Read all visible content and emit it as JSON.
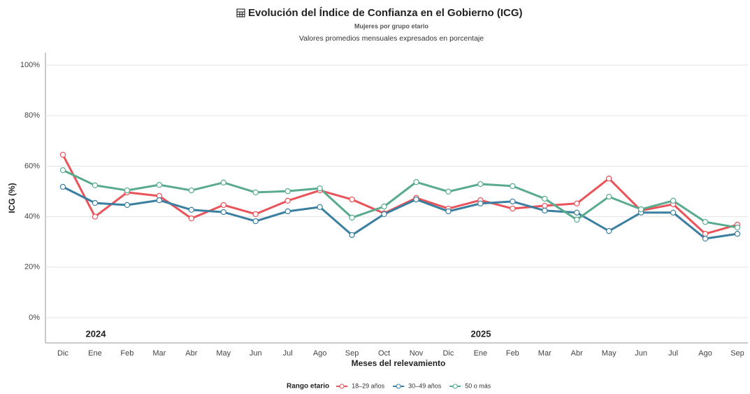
{
  "chart_data": {
    "type": "line",
    "title": "Evolución del Índice de Confianza en el Gobierno (ICG)",
    "subtitle": "Mujeres por grupo etario",
    "caption": "Valores promedios mensuales expresados en porcentaje",
    "x_label": "Meses del relevamiento",
    "y_label": "ICG (%)",
    "annotations": [
      "2024",
      "2025"
    ],
    "legend_title": "Rango etario",
    "legend": "bottom",
    "grid": true,
    "categories": [
      "Dic",
      "Ene",
      "Feb",
      "Mar",
      "Abr",
      "May",
      "Jun",
      "Jul",
      "Ago",
      "Sep",
      "Oct",
      "Nov",
      "Dic",
      "Ene",
      "Feb",
      "Mar",
      "Abr",
      "May",
      "Jun",
      "Jul",
      "Ago",
      "Sep"
    ],
    "ylim": [
      -10,
      105
    ],
    "yticks": [
      {
        "value": 0,
        "label": "0%"
      },
      {
        "value": 20,
        "label": "20%"
      },
      {
        "value": 40,
        "label": "40%"
      },
      {
        "value": 60,
        "label": "60%"
      },
      {
        "value": 80,
        "label": "80%"
      },
      {
        "value": 100,
        "label": "100%"
      }
    ],
    "series": [
      {
        "name": "18–29 años",
        "color": "#e8545a",
        "values": [
          64.5,
          40,
          49.6,
          48.2,
          39.3,
          44.6,
          41,
          46.3,
          50.4,
          46.8,
          41.3,
          47.4,
          43.2,
          46.5,
          43.2,
          44.3,
          45.2,
          55.1,
          42.4,
          44.9,
          33.2,
          36.8
        ]
      },
      {
        "name": "30–49 años",
        "color": "#3a7fa0",
        "values": [
          51.8,
          45.4,
          44.6,
          46.5,
          42.7,
          41.8,
          38.2,
          42.1,
          43.8,
          32.7,
          41,
          46.8,
          42.1,
          45.2,
          46,
          42.4,
          41.6,
          34.3,
          41.6,
          41.6,
          31.3,
          33.2
        ]
      },
      {
        "name": "50 o más",
        "color": "#5aab8e",
        "values": [
          58.4,
          52.4,
          50.4,
          52.6,
          50.4,
          53.5,
          49.6,
          50.1,
          51.2,
          39.6,
          44,
          53.7,
          49.9,
          52.9,
          52.1,
          47.1,
          38.8,
          47.9,
          42.9,
          46.3,
          37.9,
          35.7
        ]
      }
    ]
  }
}
